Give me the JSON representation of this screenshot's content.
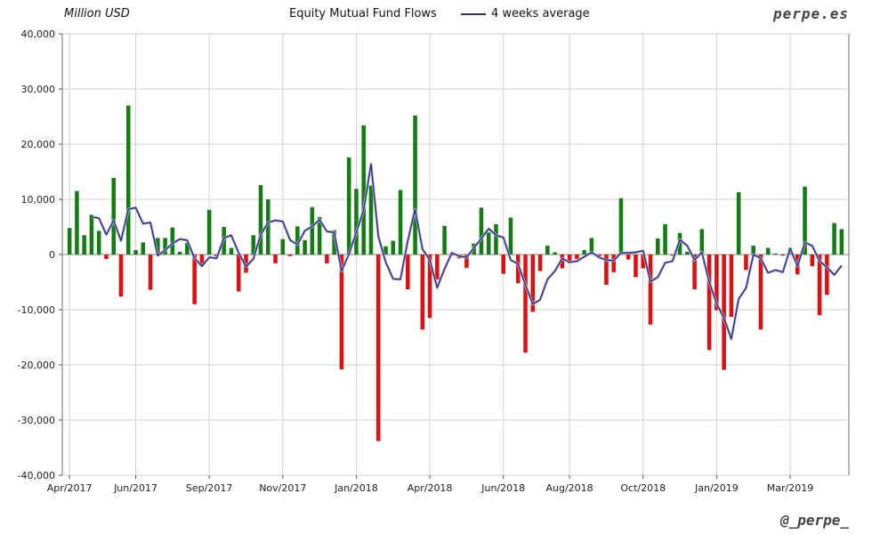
{
  "header": {
    "unit_label": "Million USD",
    "title": "Equity Mutual Fund Flows",
    "legend_label": "4 weeks average",
    "brand": "perpe.es"
  },
  "footer": {
    "handle": "@_perpe_"
  },
  "colors": {
    "positive": "#137c13",
    "negative": "#e01010",
    "average_line": "#2b2b7a"
  },
  "chart_data": {
    "type": "bar",
    "title": "Equity Mutual Fund Flows",
    "ylabel": "Million USD",
    "ylim": [
      -40000,
      40000
    ],
    "yticks": [
      40000,
      30000,
      20000,
      10000,
      0,
      -10000,
      -20000,
      -30000,
      -40000
    ],
    "ytick_labels": [
      "40,000",
      "30,000",
      "20,000",
      "10,000",
      "0",
      "-10,000",
      "-20,000",
      "-30,000",
      "-40,000"
    ],
    "xtick_labels": [
      "Apr/2017",
      "Jun/2017",
      "Sep/2017",
      "Nov/2017",
      "Jan/2018",
      "Apr/2018",
      "Jun/2018",
      "Aug/2018",
      "Oct/2018",
      "Jan/2019",
      "Mar/2019"
    ],
    "xtick_week_index": [
      0,
      9,
      19,
      29,
      39,
      49,
      59,
      68,
      78,
      88,
      98
    ],
    "grid": true,
    "legend": "top-center",
    "series": [
      {
        "name": "Equity Mutual Fund Flows (weekly)",
        "values": [
          4800,
          11500,
          3500,
          7200,
          4300,
          -800,
          13900,
          -7600,
          27000,
          800,
          2200,
          -6400,
          3000,
          3000,
          4900,
          500,
          2100,
          -9000,
          -1700,
          8100,
          -300,
          5000,
          1200,
          -6700,
          -3300,
          3500,
          12600,
          10000,
          -1600,
          2800,
          -300,
          5100,
          2600,
          8600,
          6800,
          -1600,
          4400,
          -20800,
          17600,
          11900,
          23400,
          12500,
          -33800,
          1500,
          2500,
          11700,
          -6300,
          25200,
          -13600,
          -11500,
          -4500,
          5200,
          -200,
          -700,
          -2400,
          2000,
          8500,
          4000,
          5500,
          -3500,
          6700,
          -5200,
          -17800,
          -10400,
          -3000,
          1600,
          400,
          -2500,
          -1600,
          -800,
          800,
          3000,
          -500,
          -5500,
          -3200,
          10200,
          -900,
          -4100,
          -2500,
          -12700,
          2900,
          5500,
          -200,
          3900,
          500,
          -6300,
          4600,
          -17300,
          -10100,
          -20900,
          -11300,
          11300,
          -2800,
          1600,
          -13600,
          1200,
          200,
          -200,
          1200,
          -3600,
          12300,
          -2100,
          -11000,
          -7300,
          5700,
          4600
        ]
      },
      {
        "name": "4 weeks average",
        "values": [
          null,
          null,
          null,
          6800,
          6600,
          3600,
          6200,
          2500,
          8200,
          8500,
          5600,
          5800,
          -200,
          800,
          2000,
          2800,
          2600,
          -700,
          -2100,
          -500,
          -700,
          3000,
          3500,
          300,
          -2200,
          -800,
          3600,
          5800,
          6200,
          6000,
          2600,
          1800,
          4300,
          5100,
          6300,
          4200,
          4000,
          -3000,
          100,
          4000,
          8100,
          16400,
          3300,
          -1400,
          -4400,
          -4500,
          2500,
          8200,
          1000,
          -1000,
          -6000,
          -2600,
          300,
          -300,
          -500,
          1200,
          2900,
          4700,
          3500,
          3100,
          -1000,
          -1700,
          -5500,
          -9000,
          -8200,
          -4500,
          -3000,
          -700,
          -1400,
          -1200,
          -400,
          400,
          -500,
          -1000,
          -1100,
          300,
          300,
          400,
          700,
          -4900,
          -4100,
          -1500,
          -1200,
          2700,
          1600,
          -1000,
          400,
          -5000,
          -8900,
          -11500,
          -15300,
          -8000,
          -6100,
          0,
          -700,
          -3300,
          -2800,
          -3200,
          1100,
          -2100,
          2200,
          1600,
          -1200,
          -2300,
          -3700,
          -2000
        ]
      }
    ]
  }
}
